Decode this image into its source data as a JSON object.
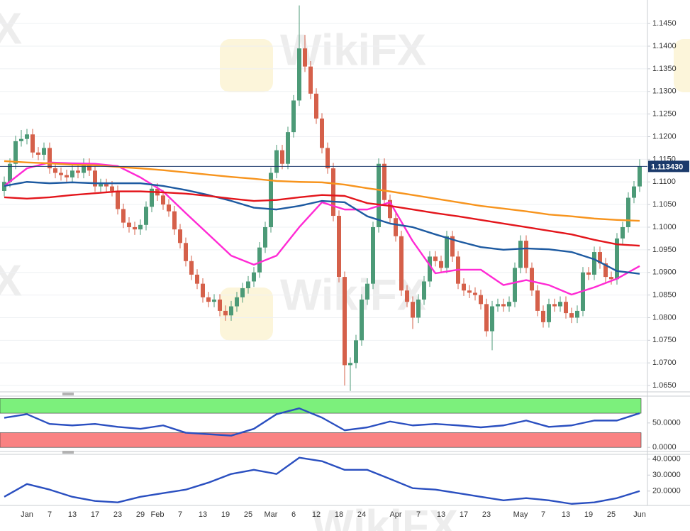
{
  "watermark": "WikiFX",
  "chart_data": [
    {
      "type": "candlestick",
      "up_color": "#4c9a77",
      "down_color": "#d5604a",
      "grid": true,
      "ylim": [
        1.0636,
        1.1502
      ],
      "yticks": [
        {
          "value": 1.065,
          "label": "1.0650"
        },
        {
          "value": 1.07,
          "label": "1.0700"
        },
        {
          "value": 1.075,
          "label": "1.0750"
        },
        {
          "value": 1.08,
          "label": "1.0800"
        },
        {
          "value": 1.085,
          "label": "1.0850"
        },
        {
          "value": 1.09,
          "label": "1.0900"
        },
        {
          "value": 1.095,
          "label": "1.0950"
        },
        {
          "value": 1.1,
          "label": "1.1000"
        },
        {
          "value": 1.105,
          "label": "1.1050"
        },
        {
          "value": 1.11,
          "label": "1.1100"
        },
        {
          "value": 1.115,
          "label": "1.1150"
        },
        {
          "value": 1.12,
          "label": "1.1200"
        },
        {
          "value": 1.125,
          "label": "1.1250"
        },
        {
          "value": 1.13,
          "label": "1.1300"
        },
        {
          "value": 1.135,
          "label": "1.1350"
        },
        {
          "value": 1.14,
          "label": "1.1400"
        },
        {
          "value": 1.145,
          "label": "1.1450"
        }
      ],
      "categories": [
        null,
        null,
        null,
        null,
        "Jan",
        null,
        null,
        null,
        "7",
        null,
        null,
        null,
        "13",
        null,
        null,
        null,
        "17",
        null,
        null,
        null,
        "23",
        null,
        null,
        null,
        "29",
        null,
        null,
        "Feb",
        null,
        null,
        null,
        "7",
        null,
        null,
        null,
        "13",
        null,
        null,
        null,
        "19",
        null,
        null,
        null,
        "25",
        null,
        null,
        null,
        "Mar",
        null,
        null,
        null,
        "6",
        null,
        null,
        null,
        "12",
        null,
        null,
        null,
        "18",
        null,
        null,
        null,
        "24",
        null,
        null,
        null,
        null,
        null,
        "Apr",
        null,
        null,
        null,
        "7",
        null,
        null,
        null,
        "13",
        null,
        null,
        null,
        "17",
        null,
        null,
        null,
        "23",
        null,
        null,
        null,
        null,
        null,
        "May",
        null,
        null,
        null,
        "7",
        null,
        null,
        null,
        "13",
        null,
        null,
        null,
        "19",
        null,
        null,
        null,
        "25",
        null,
        null,
        null,
        null,
        "Jun"
      ],
      "open": [
        1.108,
        1.11,
        1.114,
        1.119,
        1.1195,
        1.1205,
        1.1165,
        1.116,
        1.1175,
        1.113,
        1.112,
        1.1115,
        1.111,
        1.1125,
        1.112,
        1.114,
        1.1125,
        1.109,
        1.1095,
        1.109,
        1.108,
        1.104,
        1.101,
        1.1,
        1.0995,
        1.1005,
        1.1045,
        1.1085,
        1.107,
        1.105,
        1.1035,
        1.0995,
        1.0965,
        1.0925,
        1.0895,
        1.0875,
        1.0845,
        1.0835,
        1.084,
        1.0815,
        1.0805,
        1.0825,
        1.0845,
        1.0865,
        1.088,
        1.09,
        1.0955,
        1.1,
        1.112,
        1.117,
        1.114,
        1.121,
        1.128,
        1.1395,
        1.1355,
        1.1295,
        1.124,
        1.1175,
        1.113,
        1.1025,
        1.089,
        1.0695,
        1.07,
        1.075,
        1.084,
        1.0875,
        1.1,
        1.114,
        1.106,
        1.102,
        1.098,
        1.086,
        1.0835,
        1.08,
        1.084,
        1.088,
        1.0935,
        1.0925,
        1.091,
        1.098,
        1.0935,
        1.0875,
        1.086,
        1.0855,
        1.085,
        1.083,
        1.077,
        1.0825,
        1.083,
        1.0825,
        1.0835,
        1.091,
        1.097,
        1.091,
        1.086,
        1.0815,
        1.079,
        1.083,
        1.0825,
        1.0835,
        1.081,
        1.08,
        1.0815,
        1.09,
        1.0895,
        1.0945,
        1.092,
        1.089,
        1.0885,
        1.0975,
        1.1,
        1.1065,
        1.109
      ],
      "high": [
        1.1112,
        1.1152,
        1.1202,
        1.1215,
        1.1217,
        1.1217,
        1.1177,
        1.1187,
        1.1187,
        1.1142,
        1.1132,
        1.1127,
        1.1137,
        1.1137,
        1.1152,
        1.1152,
        1.1137,
        1.1107,
        1.1107,
        1.1102,
        1.1092,
        1.1052,
        1.1022,
        1.1012,
        1.1017,
        1.1057,
        1.1097,
        1.1097,
        1.1082,
        1.1062,
        1.1047,
        1.1007,
        1.0977,
        1.0937,
        1.0907,
        1.0887,
        1.0857,
        1.0852,
        1.0852,
        1.0827,
        1.0837,
        1.0857,
        1.0877,
        1.0892,
        1.0912,
        1.0967,
        1.1012,
        1.1132,
        1.1182,
        1.1182,
        1.1222,
        1.1292,
        1.149,
        1.1425,
        1.1367,
        1.1307,
        1.1252,
        1.1187,
        1.1142,
        1.1037,
        1.0902,
        1.0712,
        1.0762,
        1.0852,
        1.0887,
        1.1012,
        1.1152,
        1.1152,
        1.1072,
        1.1032,
        1.0992,
        1.0872,
        1.0847,
        1.0852,
        1.0892,
        1.0947,
        1.0947,
        1.0937,
        1.0992,
        1.0992,
        1.0947,
        1.0887,
        1.0872,
        1.0867,
        1.0862,
        1.0842,
        1.0837,
        1.0842,
        1.0842,
        1.0847,
        1.0922,
        1.0982,
        1.0982,
        1.0922,
        1.0872,
        1.0827,
        1.0842,
        1.0842,
        1.0847,
        1.0847,
        1.0822,
        1.0827,
        1.0912,
        1.0912,
        1.0957,
        1.0957,
        1.0932,
        1.0902,
        1.0987,
        1.1012,
        1.1077,
        1.1102,
        1.115
      ],
      "low": [
        1.1068,
        1.1088,
        1.1128,
        1.1178,
        1.1183,
        1.1153,
        1.1148,
        1.1148,
        1.1118,
        1.1108,
        1.1103,
        1.1098,
        1.1098,
        1.1108,
        1.1108,
        1.1113,
        1.1078,
        1.1078,
        1.1078,
        1.1068,
        1.1028,
        1.0998,
        1.0988,
        1.0983,
        1.0983,
        1.0993,
        1.1033,
        1.1058,
        1.1038,
        1.1023,
        1.0983,
        1.0953,
        1.0913,
        1.0883,
        1.0863,
        1.0833,
        1.0823,
        1.0823,
        1.0803,
        1.0793,
        1.0793,
        1.0813,
        1.0833,
        1.0853,
        1.0868,
        1.0888,
        1.0943,
        1.0988,
        1.1108,
        1.1128,
        1.1128,
        1.1198,
        1.1268,
        1.1343,
        1.1283,
        1.1228,
        1.1163,
        1.1118,
        1.1013,
        1.0878,
        1.065,
        1.0638,
        1.0688,
        1.0738,
        1.0828,
        1.0863,
        1.0988,
        1.1048,
        1.1008,
        1.0968,
        1.0848,
        1.0823,
        1.0775,
        1.0788,
        1.0828,
        1.0868,
        1.0913,
        1.0898,
        1.0898,
        1.0923,
        1.0863,
        1.0848,
        1.0843,
        1.0838,
        1.0818,
        1.0758,
        1.0728,
        1.0813,
        1.0813,
        1.0813,
        1.0823,
        1.0898,
        1.0898,
        1.0848,
        1.0803,
        1.0778,
        1.0778,
        1.0813,
        1.0813,
        1.0798,
        1.0788,
        1.0788,
        1.0803,
        1.0883,
        1.0883,
        1.0908,
        1.0878,
        1.0873,
        1.0873,
        1.0963,
        1.0988,
        1.1053,
        1.1078
      ],
      "close": [
        1.11,
        1.114,
        1.119,
        1.1195,
        1.1205,
        1.1165,
        1.116,
        1.1175,
        1.113,
        1.112,
        1.1115,
        1.111,
        1.1125,
        1.112,
        1.114,
        1.1125,
        1.109,
        1.1095,
        1.109,
        1.108,
        1.104,
        1.101,
        1.1,
        1.0995,
        1.1005,
        1.1045,
        1.1085,
        1.107,
        1.105,
        1.1035,
        1.0995,
        1.0965,
        1.0925,
        1.0895,
        1.0875,
        1.0845,
        1.0835,
        1.084,
        1.0815,
        1.0805,
        1.0825,
        1.0845,
        1.0865,
        1.088,
        1.09,
        1.0955,
        1.1,
        1.112,
        1.117,
        1.114,
        1.121,
        1.128,
        1.1395,
        1.1355,
        1.1295,
        1.124,
        1.1175,
        1.113,
        1.1025,
        1.089,
        1.0695,
        1.07,
        1.075,
        1.084,
        1.0875,
        1.1,
        1.114,
        1.106,
        1.102,
        1.098,
        1.086,
        1.0835,
        1.08,
        1.084,
        1.088,
        1.0935,
        1.0925,
        1.091,
        1.098,
        1.0935,
        1.0875,
        1.086,
        1.0855,
        1.085,
        1.083,
        1.077,
        1.0825,
        1.083,
        1.0825,
        1.0835,
        1.091,
        1.097,
        1.091,
        1.086,
        1.0815,
        1.079,
        1.083,
        1.0825,
        1.0835,
        1.081,
        1.08,
        1.0815,
        1.09,
        1.0895,
        1.0945,
        1.092,
        1.089,
        1.0885,
        1.0975,
        1.1,
        1.1065,
        1.109,
        1.11343
      ],
      "last_price": {
        "value": 1.11343,
        "label": "1.113430"
      },
      "overlays": [
        {
          "color": "#ff2ad4",
          "x": [
            0,
            4,
            8,
            12,
            16,
            20,
            24,
            28,
            32,
            36,
            40,
            44,
            48,
            52,
            56,
            60,
            64,
            68,
            72,
            76,
            80,
            84,
            88,
            92,
            96,
            100,
            104,
            108,
            112
          ],
          "values": [
            1.1091,
            1.113,
            1.1143,
            1.1141,
            1.114,
            1.1135,
            1.111,
            1.1079,
            1.1031,
            1.0984,
            1.0937,
            1.0917,
            1.0937,
            1.1,
            1.1055,
            1.1039,
            1.1039,
            1.1055,
            1.0969,
            1.0898,
            1.0906,
            1.0906,
            1.0872,
            1.0883,
            1.0872,
            1.0851,
            1.0867,
            1.0886,
            1.0914
          ]
        },
        {
          "color": "#1d5aa1",
          "x": [
            0,
            4,
            8,
            12,
            16,
            20,
            24,
            28,
            32,
            36,
            40,
            44,
            48,
            52,
            56,
            60,
            64,
            68,
            72,
            76,
            80,
            84,
            88,
            92,
            96,
            100,
            104,
            108,
            112
          ],
          "values": [
            1.1091,
            1.11,
            1.1097,
            1.1099,
            1.1097,
            1.1097,
            1.1097,
            1.1091,
            1.1082,
            1.1071,
            1.1058,
            1.1043,
            1.1039,
            1.1047,
            1.1058,
            1.1055,
            1.1024,
            1.1008,
            1.1,
            1.0984,
            1.0969,
            1.0956,
            1.095,
            1.0953,
            1.0951,
            1.0945,
            1.0929,
            1.0903,
            1.0897
          ]
        },
        {
          "color": "#e3151b",
          "x": [
            0,
            4,
            8,
            12,
            16,
            20,
            24,
            28,
            32,
            36,
            40,
            44,
            48,
            52,
            56,
            60,
            64,
            68,
            72,
            76,
            80,
            84,
            88,
            92,
            96,
            100,
            104,
            108,
            112
          ],
          "values": [
            1.1066,
            1.1063,
            1.1066,
            1.1071,
            1.1075,
            1.1079,
            1.1079,
            1.1077,
            1.1074,
            1.1069,
            1.1063,
            1.1058,
            1.106,
            1.1066,
            1.1071,
            1.1069,
            1.1053,
            1.1047,
            1.1039,
            1.1031,
            1.1024,
            1.1016,
            1.1008,
            1.1,
            1.0992,
            1.0984,
            1.0972,
            1.0962,
            1.0959
          ]
        },
        {
          "color": "#f7941d",
          "x": [
            0,
            4,
            8,
            12,
            16,
            20,
            24,
            28,
            32,
            36,
            40,
            44,
            48,
            52,
            56,
            60,
            64,
            68,
            72,
            76,
            80,
            84,
            88,
            92,
            96,
            100,
            104,
            108,
            112
          ],
          "values": [
            1.1146,
            1.1143,
            1.1141,
            1.1138,
            1.1137,
            1.1133,
            1.113,
            1.1126,
            1.1121,
            1.1116,
            1.1111,
            1.1107,
            1.1102,
            1.11,
            1.1099,
            1.1094,
            1.1086,
            1.1079,
            1.1071,
            1.1063,
            1.1055,
            1.1047,
            1.1041,
            1.1035,
            1.1028,
            1.1024,
            1.1019,
            1.1016,
            1.1014
          ]
        }
      ]
    },
    {
      "type": "line",
      "color": "#2a4fc0",
      "ylim": [
        -7,
        105
      ],
      "yticks": [
        {
          "value": 50,
          "label": "50.0000"
        },
        {
          "value": 0,
          "label": "0.0000"
        }
      ],
      "bands": [
        {
          "from": 70,
          "to": 100,
          "color": "#7cf07c"
        },
        {
          "from": 0,
          "to": 30,
          "color": "#f98282"
        }
      ],
      "x": [
        0,
        4,
        8,
        12,
        16,
        20,
        24,
        28,
        32,
        36,
        40,
        44,
        48,
        52,
        56,
        60,
        64,
        68,
        72,
        76,
        80,
        84,
        88,
        92,
        96,
        100,
        104,
        108,
        112
      ],
      "values": [
        60.6,
        68,
        48,
        45,
        48,
        42,
        38,
        45,
        30,
        27,
        24,
        38,
        68,
        80,
        61,
        35,
        41,
        53,
        45,
        48,
        45,
        41,
        45,
        55,
        42,
        45,
        55,
        55,
        70
      ]
    },
    {
      "type": "line",
      "color": "#2a4fc0",
      "ylim": [
        11,
        43
      ],
      "yticks": [
        {
          "value": 20,
          "label": "20.0000"
        },
        {
          "value": 30,
          "label": "30.0000"
        },
        {
          "value": 40,
          "label": "40.0000"
        }
      ],
      "x": [
        0,
        4,
        8,
        12,
        16,
        20,
        24,
        28,
        32,
        36,
        40,
        44,
        48,
        52,
        56,
        60,
        64,
        68,
        72,
        76,
        80,
        84,
        88,
        92,
        96,
        100,
        104,
        108,
        112
      ],
      "values": [
        16.4,
        24.4,
        20.9,
        16.4,
        13.8,
        12.9,
        16.4,
        18.7,
        20.9,
        25.3,
        30.7,
        33.3,
        30.7,
        40.9,
        38.7,
        33.3,
        33.3,
        27.6,
        21.8,
        20.9,
        18.7,
        16.4,
        14.2,
        15.6,
        14.2,
        12.0,
        12.9,
        15.6,
        20.0
      ]
    }
  ]
}
